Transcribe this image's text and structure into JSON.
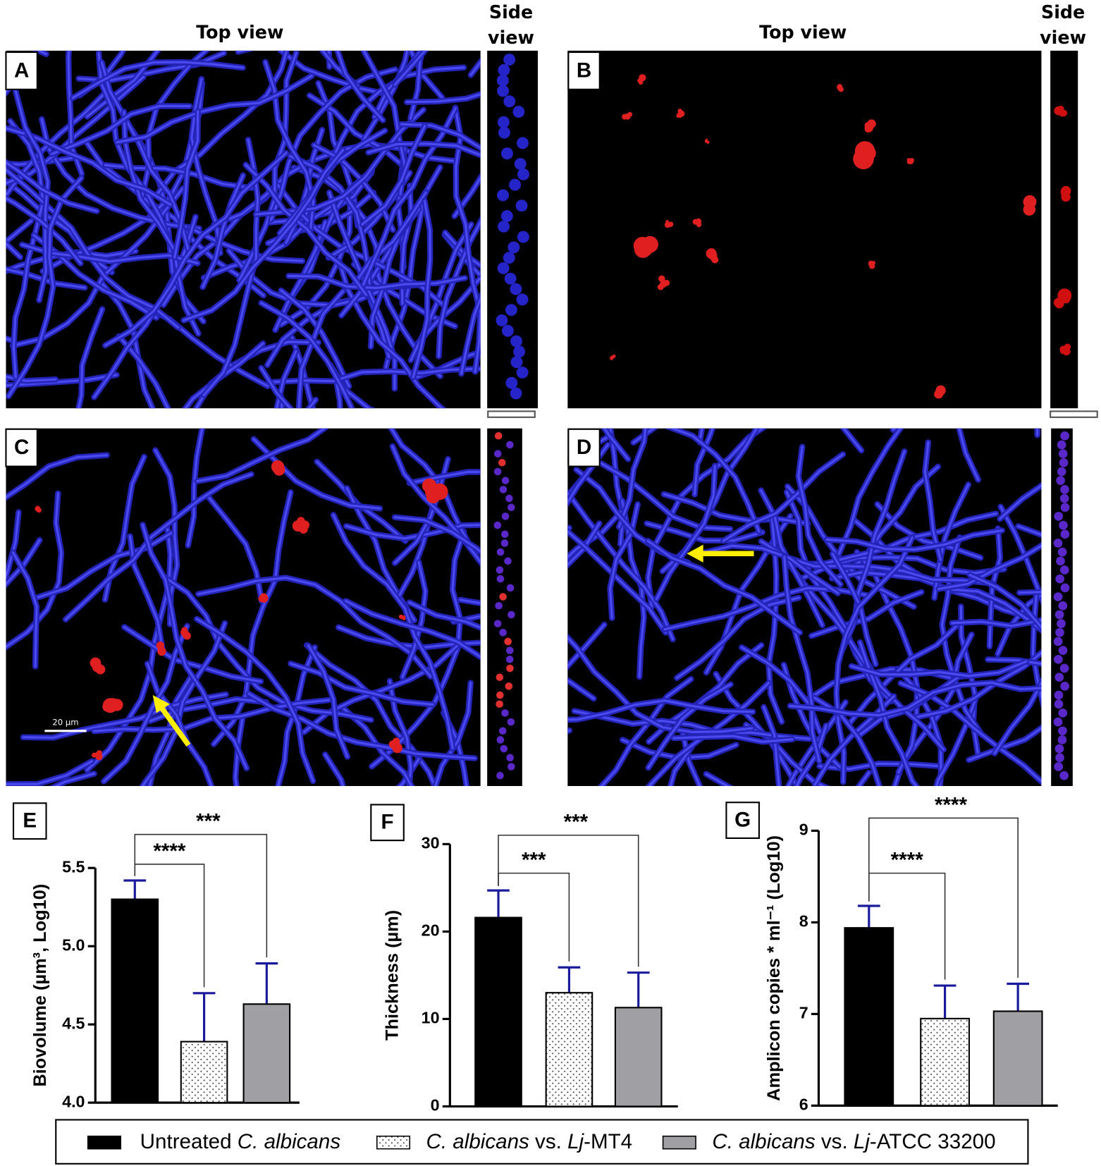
{
  "panels": [
    {
      "letter": "A",
      "top_view": "Top view",
      "side_view": [
        "Side",
        "view"
      ]
    },
    {
      "letter": "B",
      "top_view": "Top view",
      "side_view": [
        "Side",
        "view"
      ]
    },
    {
      "letter": "C",
      "scale_label": "20 µm"
    },
    {
      "letter": "D"
    }
  ],
  "legend": [
    {
      "color": "#000000",
      "pattern": "solid",
      "label_parts": [
        {
          "text": "Untreated "
        },
        {
          "text": "C. albicans",
          "italic": true
        }
      ]
    },
    {
      "color": "#ffffff",
      "pattern": "dots",
      "label_parts": [
        {
          "text": "C. albicans",
          "italic": true
        },
        {
          "text": " vs. "
        },
        {
          "text": "Lj",
          "italic": true
        },
        {
          "text": "-MT4"
        }
      ]
    },
    {
      "color": "#a0a0a4",
      "pattern": "solid",
      "label_parts": [
        {
          "text": "C. albicans",
          "italic": true
        },
        {
          "text": " vs. "
        },
        {
          "text": "Lj",
          "italic": true
        },
        {
          "text": "-ATCC 33200"
        }
      ]
    }
  ],
  "chart_data": [
    {
      "type": "bar",
      "panel": "E",
      "y_label": "Biovolume (µm³, Log10)",
      "values": [
        5.3,
        4.39,
        4.63
      ],
      "errors": [
        0.12,
        0.31,
        0.26
      ],
      "error_color": "#1a1a9c",
      "ylim": [
        4.0,
        5.5
      ],
      "yticks": [
        {
          "value": 4.0,
          "label": "4.0"
        },
        {
          "value": 4.5,
          "label": "4.5"
        },
        {
          "value": 5.0,
          "label": "5.0"
        },
        {
          "value": 5.5,
          "label": "5.5"
        }
      ],
      "annotations": [
        "****",
        "***"
      ]
    },
    {
      "type": "bar",
      "panel": "F",
      "y_label": "Thickness (µm)",
      "values": [
        21.6,
        13.0,
        11.3
      ],
      "errors": [
        3.1,
        2.9,
        4.0
      ],
      "error_color": "#1a1a9c",
      "ylim": [
        0,
        30
      ],
      "yticks": [
        0,
        10,
        20,
        30
      ],
      "annotations": [
        "***",
        "***"
      ]
    },
    {
      "type": "bar",
      "panel": "G",
      "y_label": "Amplicon copies * ml⁻¹ (Log10)",
      "values": [
        7.94,
        6.95,
        7.03
      ],
      "errors": [
        0.24,
        0.36,
        0.3
      ],
      "error_color": "#1a1a9c",
      "ylim": [
        6,
        9
      ],
      "yticks": [
        6,
        7,
        8,
        9
      ],
      "annotations": [
        "****",
        "****"
      ]
    }
  ]
}
